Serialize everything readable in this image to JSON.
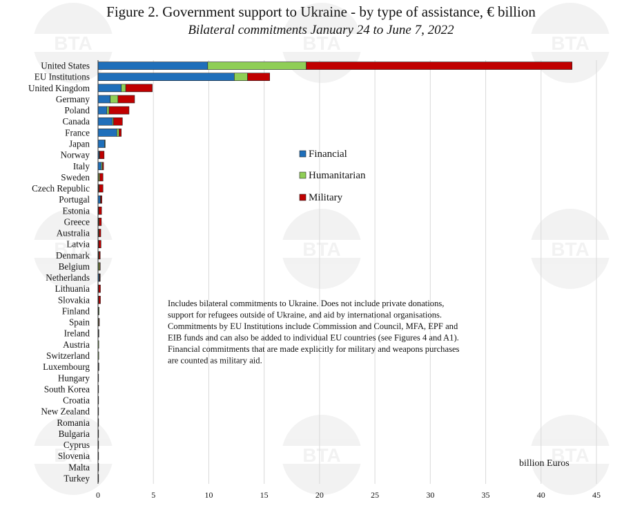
{
  "title": "Figure 2. Government support to Ukraine - by type of assistance, € billion",
  "subtitle": "Bilateral commitments January 24 to June 7, 2022",
  "watermark_text": "BTA",
  "note_lines": [
    "Includes bilateral commitments to Ukraine. Does not include private donations,",
    "support for refugees outside of Ukraine, and aid by international organisations.",
    "Commitments by EU Institutions include Commission and Council, MFA, EPF and",
    "EIB funds and can also be added to individual EU countries (see Figures 4 and A1).",
    "Financial commitments that are made explicitly for military and weapons purchases",
    "are counted as military aid."
  ],
  "unit_label": "billion Euros",
  "chart_data": {
    "type": "bar",
    "orientation": "horizontal",
    "stacked": true,
    "title": "Figure 2. Government support to Ukraine - by type of assistance, € billion",
    "subtitle": "Bilateral commitments January 24 to June 7, 2022",
    "categories": [
      "United States",
      "EU Institutions",
      "United Kingdom",
      "Germany",
      "Poland",
      "Canada",
      "France",
      "Japan",
      "Norway",
      "Italy",
      "Sweden",
      "Czech Republic",
      "Portugal",
      "Estonia",
      "Greece",
      "Australia",
      "Latvia",
      "Denmark",
      "Belgium",
      "Netherlands",
      "Lithuania",
      "Slovakia",
      "Finland",
      "Spain",
      "Ireland",
      "Austria",
      "Switzerland",
      "Luxembourg",
      "Hungary",
      "South Korea",
      "Croatia",
      "New Zealand",
      "Romania",
      "Bulgaria",
      "Cyprus",
      "Slovenia",
      "Malta",
      "Turkey"
    ],
    "series": [
      {
        "name": "Financial",
        "color": "#1f6fba",
        "values": [
          9.9,
          12.3,
          2.1,
          1.1,
          0.8,
          1.3,
          1.7,
          0.6,
          0.1,
          0.3,
          0.05,
          0.05,
          0.2,
          0.05,
          0.05,
          0.05,
          0.05,
          0.05,
          0.05,
          0.1,
          0.05,
          0.05,
          0.05,
          0.02,
          0.02,
          0.02,
          0.02,
          0.02,
          0.02,
          0.02,
          0.01,
          0.01,
          0.01,
          0.01,
          0.01,
          0.01,
          0.01,
          0.01
        ]
      },
      {
        "name": "Humanitarian",
        "color": "#8fce56",
        "values": [
          8.9,
          1.2,
          0.4,
          0.7,
          0.2,
          0.1,
          0.2,
          0.05,
          0.05,
          0.1,
          0.1,
          0.05,
          0.05,
          0.02,
          0.05,
          0.05,
          0.02,
          0.05,
          0.1,
          0.05,
          0.02,
          0.02,
          0.05,
          0.05,
          0.03,
          0.05,
          0.05,
          0.03,
          0.02,
          0.02,
          0.01,
          0.01,
          0.01,
          0.01,
          0.01,
          0.01,
          0.01,
          0.01
        ]
      },
      {
        "name": "Military",
        "color": "#c00000",
        "values": [
          24.0,
          2.0,
          2.4,
          1.5,
          1.8,
          0.8,
          0.2,
          0.0,
          0.4,
          0.1,
          0.3,
          0.35,
          0.1,
          0.25,
          0.2,
          0.15,
          0.2,
          0.1,
          0.05,
          0.05,
          0.15,
          0.15,
          0.0,
          0.05,
          0.02,
          0.0,
          0.0,
          0.01,
          0.0,
          0.0,
          0.02,
          0.02,
          0.02,
          0.01,
          0.01,
          0.01,
          0.01,
          0.01
        ]
      }
    ],
    "x_ticks": [
      0,
      5,
      10,
      15,
      20,
      25,
      30,
      35,
      40,
      45
    ],
    "xlim": [
      0,
      45
    ],
    "xlabel": "billion Euros",
    "grid": "vertical",
    "legend": [
      "Financial",
      "Humanitarian",
      "Military"
    ],
    "legend_placement": "center"
  }
}
